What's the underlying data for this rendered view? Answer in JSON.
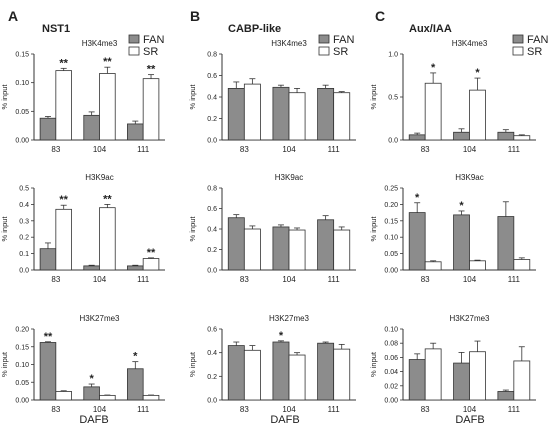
{
  "figure": {
    "panel_letters": [
      "A",
      "B",
      "C"
    ],
    "gene_titles": [
      "NST1",
      "CABP-like",
      "Aux/IAA"
    ],
    "x_axis_label": "DAFB",
    "legend": [
      {
        "label": "FAN",
        "color": "#8c8c8c"
      },
      {
        "label": "SR",
        "color": "#ffffff"
      }
    ],
    "bar_stroke": "#333333"
  },
  "chart_data": [
    {
      "type": "bar",
      "panel": "A",
      "gene": "NST1",
      "title": "H3K4me3",
      "ylabel": "% input",
      "categories": [
        "83",
        "104",
        "111"
      ],
      "ylim": [
        0,
        0.15
      ],
      "yticks": [
        "0.00",
        "0.05",
        "0.10",
        "0.15"
      ],
      "series": [
        {
          "name": "FAN",
          "values": [
            0.038,
            0.043,
            0.028
          ],
          "errors": [
            0.003,
            0.006,
            0.005
          ]
        },
        {
          "name": "SR",
          "values": [
            0.121,
            0.116,
            0.107
          ],
          "errors": [
            0.004,
            0.011,
            0.007
          ]
        }
      ],
      "annotations": [
        {
          "category": "83",
          "series": "SR",
          "text": "**"
        },
        {
          "category": "104",
          "series": "SR",
          "text": "**"
        },
        {
          "category": "111",
          "series": "SR",
          "text": "**"
        }
      ]
    },
    {
      "type": "bar",
      "panel": "B",
      "gene": "CABP-like",
      "title": "H3K4me3",
      "ylabel": "% input",
      "categories": [
        "83",
        "104",
        "111"
      ],
      "ylim": [
        0,
        0.8
      ],
      "yticks": [
        "0.0",
        "0.2",
        "0.4",
        "0.6",
        "0.8"
      ],
      "series": [
        {
          "name": "FAN",
          "values": [
            0.48,
            0.49,
            0.48
          ],
          "errors": [
            0.06,
            0.02,
            0.03
          ]
        },
        {
          "name": "SR",
          "values": [
            0.52,
            0.44,
            0.44
          ],
          "errors": [
            0.05,
            0.04,
            0.01
          ]
        }
      ],
      "annotations": []
    },
    {
      "type": "bar",
      "panel": "C",
      "gene": "Aux/IAA",
      "title": "H3K4me3",
      "ylabel": "% input",
      "categories": [
        "83",
        "104",
        "111"
      ],
      "ylim": [
        0,
        1.0
      ],
      "yticks": [
        "0.0",
        "0.5",
        "1.0"
      ],
      "series": [
        {
          "name": "FAN",
          "values": [
            0.06,
            0.09,
            0.09
          ],
          "errors": [
            0.02,
            0.04,
            0.03
          ]
        },
        {
          "name": "SR",
          "values": [
            0.66,
            0.58,
            0.05
          ],
          "errors": [
            0.12,
            0.14,
            0.01
          ]
        }
      ],
      "annotations": [
        {
          "category": "83",
          "series": "SR",
          "text": "*"
        },
        {
          "category": "104",
          "series": "SR",
          "text": "*"
        }
      ]
    },
    {
      "type": "bar",
      "panel": "A",
      "gene": "NST1",
      "title": "H3K9ac",
      "ylabel": "% input",
      "categories": [
        "83",
        "104",
        "111"
      ],
      "ylim": [
        0,
        0.5
      ],
      "yticks": [
        "0.0",
        "0.1",
        "0.2",
        "0.3",
        "0.4",
        "0.5"
      ],
      "series": [
        {
          "name": "FAN",
          "values": [
            0.13,
            0.025,
            0.025
          ],
          "errors": [
            0.035,
            0.004,
            0.004
          ]
        },
        {
          "name": "SR",
          "values": [
            0.37,
            0.38,
            0.07
          ],
          "errors": [
            0.025,
            0.02,
            0.004
          ]
        }
      ],
      "annotations": [
        {
          "category": "83",
          "series": "SR",
          "text": "**"
        },
        {
          "category": "104",
          "series": "SR",
          "text": "**"
        },
        {
          "category": "111",
          "series": "SR",
          "text": "**"
        }
      ]
    },
    {
      "type": "bar",
      "panel": "B",
      "gene": "CABP-like",
      "title": "H3K9ac",
      "ylabel": "% input",
      "categories": [
        "83",
        "104",
        "111"
      ],
      "ylim": [
        0,
        0.8
      ],
      "yticks": [
        "0.0",
        "0.2",
        "0.4",
        "0.6",
        "0.8"
      ],
      "series": [
        {
          "name": "FAN",
          "values": [
            0.51,
            0.42,
            0.49
          ],
          "errors": [
            0.03,
            0.02,
            0.04
          ]
        },
        {
          "name": "SR",
          "values": [
            0.4,
            0.39,
            0.39
          ],
          "errors": [
            0.03,
            0.02,
            0.03
          ]
        }
      ],
      "annotations": []
    },
    {
      "type": "bar",
      "panel": "C",
      "gene": "Aux/IAA",
      "title": "H3K9ac",
      "ylabel": "% input",
      "categories": [
        "83",
        "104",
        "111"
      ],
      "ylim": [
        0,
        0.25
      ],
      "yticks": [
        "0.00",
        "0.05",
        "0.10",
        "0.15",
        "0.20",
        "0.25"
      ],
      "series": [
        {
          "name": "FAN",
          "values": [
            0.175,
            0.168,
            0.163
          ],
          "errors": [
            0.03,
            0.012,
            0.045
          ]
        },
        {
          "name": "SR",
          "values": [
            0.025,
            0.028,
            0.032
          ],
          "errors": [
            0.003,
            0.002,
            0.005
          ]
        }
      ],
      "annotations": [
        {
          "category": "83",
          "series": "FAN",
          "text": "*"
        },
        {
          "category": "104",
          "series": "FAN",
          "text": "*"
        }
      ]
    },
    {
      "type": "bar",
      "panel": "A",
      "gene": "NST1",
      "title": "H3K27me3",
      "ylabel": "% input",
      "categories": [
        "83",
        "104",
        "111"
      ],
      "ylim": [
        0,
        0.2
      ],
      "yticks": [
        "0.00",
        "0.05",
        "0.10",
        "0.15",
        "0.20"
      ],
      "series": [
        {
          "name": "FAN",
          "values": [
            0.162,
            0.037,
            0.088
          ],
          "errors": [
            0.002,
            0.008,
            0.02
          ]
        },
        {
          "name": "SR",
          "values": [
            0.024,
            0.013,
            0.013
          ],
          "errors": [
            0.002,
            0.001,
            0.001
          ]
        }
      ],
      "annotations": [
        {
          "category": "83",
          "series": "FAN",
          "text": "**"
        },
        {
          "category": "104",
          "series": "FAN",
          "text": "*"
        },
        {
          "category": "111",
          "series": "FAN",
          "text": "*"
        }
      ]
    },
    {
      "type": "bar",
      "panel": "B",
      "gene": "CABP-like",
      "title": "H3K27me3",
      "ylabel": "% input",
      "categories": [
        "83",
        "104",
        "111"
      ],
      "ylim": [
        0,
        0.6
      ],
      "yticks": [
        "0.0",
        "0.2",
        "0.4",
        "0.6"
      ],
      "series": [
        {
          "name": "FAN",
          "values": [
            0.46,
            0.49,
            0.48
          ],
          "errors": [
            0.03,
            0.01,
            0.01
          ]
        },
        {
          "name": "SR",
          "values": [
            0.42,
            0.38,
            0.43
          ],
          "errors": [
            0.04,
            0.02,
            0.04
          ]
        }
      ],
      "annotations": [
        {
          "category": "104",
          "series": "FAN",
          "text": "*"
        }
      ]
    },
    {
      "type": "bar",
      "panel": "C",
      "gene": "Aux/IAA",
      "title": "H3K27me3",
      "ylabel": "% input",
      "categories": [
        "83",
        "104",
        "111"
      ],
      "ylim": [
        0,
        0.1
      ],
      "yticks": [
        "0.00",
        "0.02",
        "0.04",
        "0.06",
        "0.08",
        "0.10"
      ],
      "series": [
        {
          "name": "FAN",
          "values": [
            0.057,
            0.052,
            0.012
          ],
          "errors": [
            0.008,
            0.015,
            0.002
          ]
        },
        {
          "name": "SR",
          "values": [
            0.072,
            0.068,
            0.055
          ],
          "errors": [
            0.008,
            0.015,
            0.02
          ]
        }
      ],
      "annotations": []
    }
  ]
}
